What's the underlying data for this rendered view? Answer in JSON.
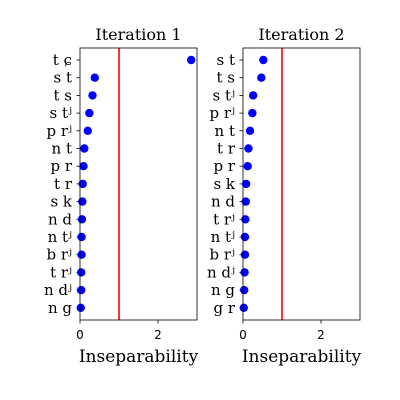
{
  "chart_data": [
    {
      "type": "scatter",
      "title": "Iteration 1",
      "xlabel": "Inseparability",
      "ylabel": "",
      "xlim": [
        0,
        3
      ],
      "xticks": [
        0,
        2
      ],
      "threshold": 1,
      "point_color": "#0000ff",
      "threshold_color": "#ff0000",
      "categories": [
        "t ɕ",
        "s t",
        "t s",
        "s tʲ",
        "p rʲ",
        "n t",
        "p r",
        "t r",
        "s k",
        "n d",
        "n tʲ",
        "b rʲ",
        "t rʲ",
        "n dʲ",
        "n g"
      ],
      "values": [
        2.85,
        0.38,
        0.32,
        0.24,
        0.2,
        0.11,
        0.09,
        0.07,
        0.06,
        0.05,
        0.04,
        0.04,
        0.03,
        0.03,
        0.02
      ]
    },
    {
      "type": "scatter",
      "title": "Iteration 2",
      "xlabel": "Inseparability",
      "ylabel": "",
      "xlim": [
        0,
        3
      ],
      "xticks": [
        0,
        2
      ],
      "threshold": 1,
      "point_color": "#0000ff",
      "threshold_color": "#ff0000",
      "categories": [
        "s t",
        "t s",
        "s tʲ",
        "p rʲ",
        "n t",
        "t r",
        "p r",
        "s k",
        "n d",
        "t rʲ",
        "n tʲ",
        "b rʲ",
        "n dʲ",
        "n g",
        "g r"
      ],
      "values": [
        0.52,
        0.47,
        0.26,
        0.24,
        0.18,
        0.14,
        0.12,
        0.08,
        0.07,
        0.06,
        0.05,
        0.05,
        0.04,
        0.03,
        0.02
      ]
    }
  ]
}
